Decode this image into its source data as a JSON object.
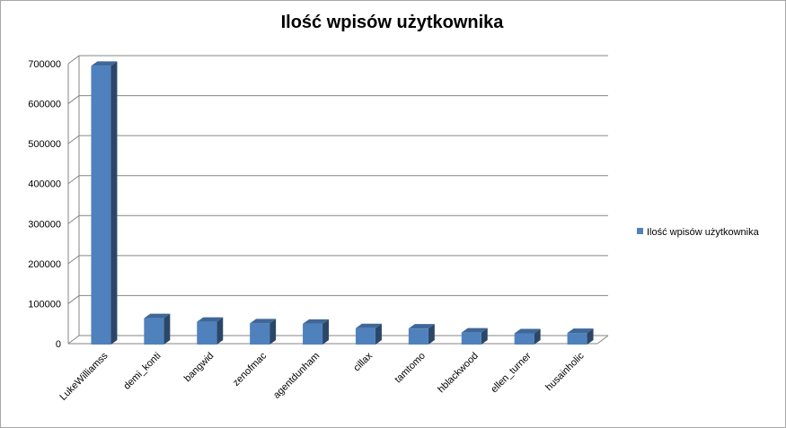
{
  "chart_data": {
    "type": "bar",
    "title": "Ilość wpisów użytkownika",
    "categories": [
      "LukeWilliamss",
      "demi_konti",
      "bangwid",
      "zenofmac",
      "agentdunham",
      "cillax",
      "tamtomo",
      "hblackwood",
      "ellen_turner",
      "husainholic"
    ],
    "series": [
      {
        "name": "Ilość wpisów użytkownika",
        "values": [
          697000,
          66000,
          57000,
          53000,
          52000,
          41000,
          40000,
          30000,
          28000,
          29000
        ],
        "color": "#4f81bd"
      }
    ],
    "yticks": [
      "0",
      "100000",
      "200000",
      "300000",
      "400000",
      "500000",
      "600000",
      "700000"
    ],
    "ylim": [
      0,
      700000
    ],
    "grid": true,
    "legend": "right",
    "style": "3d-column"
  }
}
